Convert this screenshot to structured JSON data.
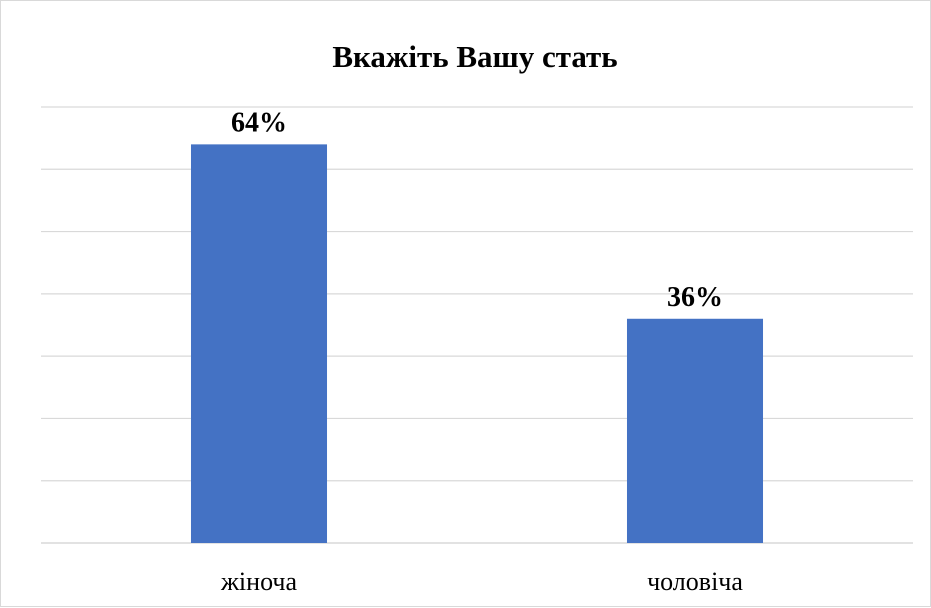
{
  "chart_data": {
    "type": "bar",
    "title": "Вкажіть Вашу стать",
    "categories": [
      "жіноча",
      "чоловіча"
    ],
    "values": [
      64,
      36
    ],
    "value_labels": [
      "64%",
      "36%"
    ],
    "unit": "%",
    "ylim": [
      0,
      70
    ],
    "grid": true,
    "legend": "none",
    "bar_color": "#4472C4"
  }
}
